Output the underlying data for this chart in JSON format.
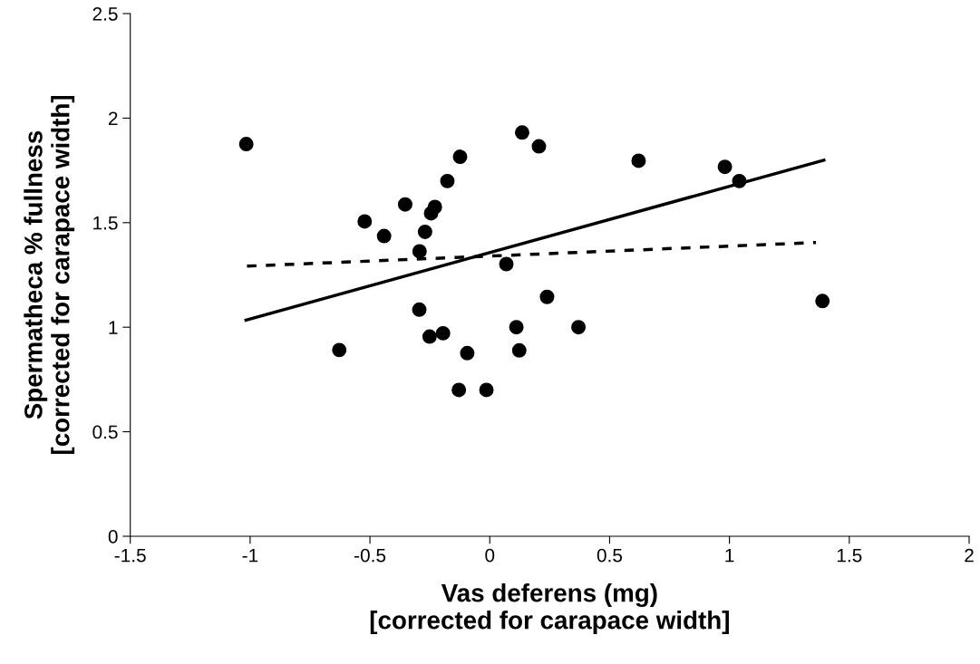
{
  "chart_data": {
    "type": "scatter",
    "xlabel": "Vas deferens (mg)\n[corrected for carapace width]",
    "ylabel": "Spermatheca % fullness\n[corrected for carapace width]",
    "xlim": [
      -1.5,
      2
    ],
    "ylim": [
      0,
      2.5
    ],
    "xticks": [
      -1.5,
      -1,
      -0.5,
      0,
      0.5,
      1,
      1.5,
      2
    ],
    "yticks": [
      0,
      0.5,
      1,
      1.5,
      2,
      2.5
    ],
    "grid": false,
    "marker": "circle",
    "series": [
      {
        "color": "#000000",
        "x": [
          -1.016,
          -0.628,
          -0.522,
          -0.441,
          -0.353,
          -0.293,
          -0.294,
          -0.27,
          -0.245,
          -0.229,
          -0.251,
          -0.195,
          -0.177,
          -0.124,
          -0.094,
          -0.129,
          -0.014,
          0.135,
          0.205,
          0.069,
          0.239,
          0.111,
          0.123,
          0.37,
          0.621,
          0.981,
          1.041,
          1.388
        ],
        "values": [
          1.876,
          0.891,
          1.506,
          1.436,
          1.587,
          1.363,
          1.084,
          1.456,
          1.545,
          1.575,
          0.955,
          0.971,
          1.699,
          1.815,
          0.876,
          0.7,
          0.7,
          1.931,
          1.865,
          1.302,
          1.145,
          1.0,
          0.889,
          1.0,
          1.796,
          1.767,
          1.699,
          1.125
        ]
      },
      {
        "type": "line",
        "color": "#000000",
        "line_style": "solid",
        "marker": "none",
        "x": [
          -1.017,
          1.394
        ],
        "values": [
          1.034,
          1.799
        ]
      },
      {
        "type": "line",
        "color": "#000000",
        "line_style": "dashed",
        "marker": "none",
        "x": [
          -1.013,
          1.361
        ],
        "values": [
          1.292,
          1.405
        ]
      }
    ]
  }
}
